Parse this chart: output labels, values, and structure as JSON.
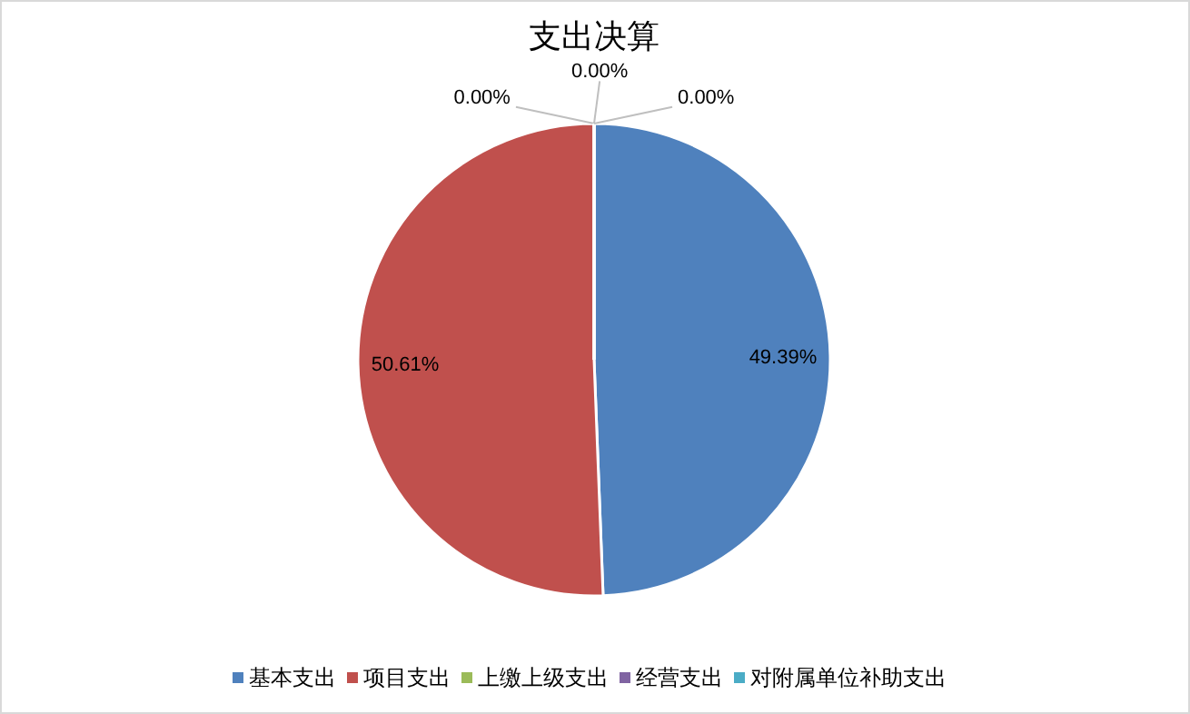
{
  "chart_data": {
    "type": "pie",
    "title": "支出决算",
    "categories": [
      "基本支出",
      "项目支出",
      "上缴上级支出",
      "经营支出",
      "对附属单位补助支出"
    ],
    "values": [
      49.39,
      50.61,
      0,
      0,
      0
    ],
    "colors": [
      "#4f81bd",
      "#c0504d",
      "#9bbb59",
      "#8064a2",
      "#4bacc6"
    ],
    "value_labels": [
      "49.39%",
      "50.61%",
      "0.00%",
      "0.00%",
      "0.00%"
    ],
    "legend": "bottom"
  }
}
